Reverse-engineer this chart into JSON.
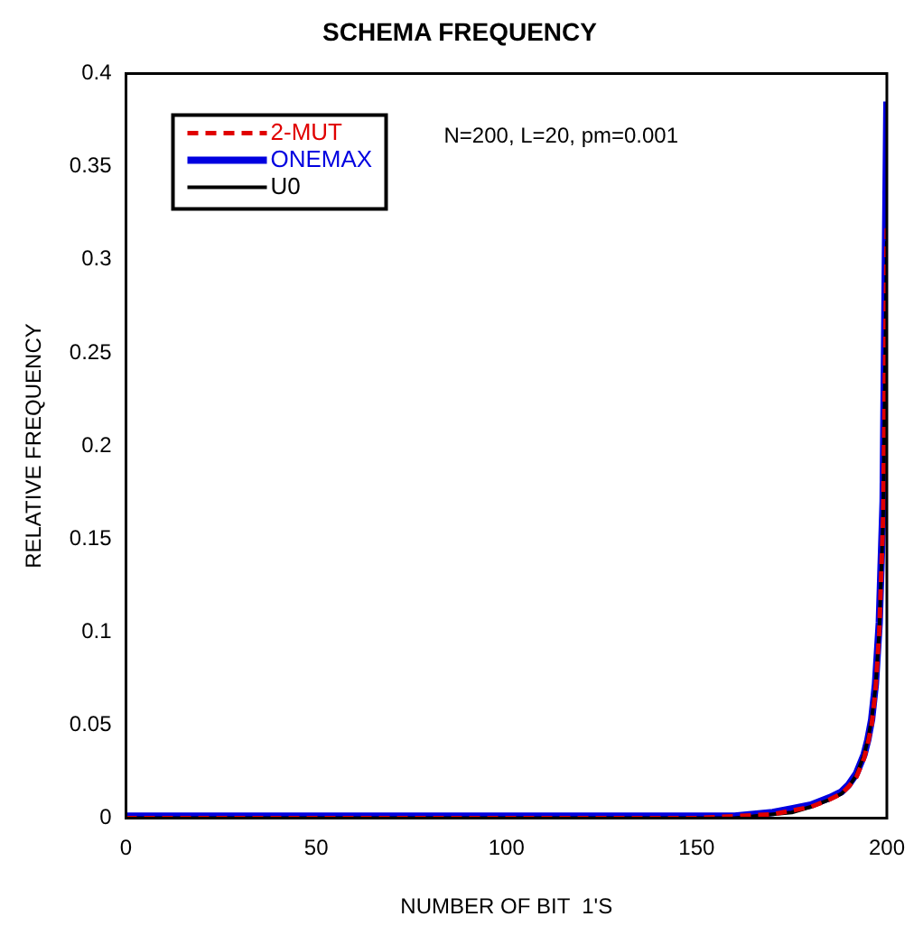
{
  "chart_data": {
    "type": "line",
    "title": "SCHEMA FREQUENCY",
    "xlabel": "NUMBER OF BIT  1'S",
    "ylabel": "RELATIVE FREQUENCY",
    "annotations": [
      "N=200, L=20, pm=0.001"
    ],
    "x": [
      0,
      50,
      100,
      150,
      160,
      170,
      175,
      180,
      185,
      188,
      190,
      192,
      194,
      195,
      196,
      197,
      198,
      199,
      200
    ],
    "series": [
      {
        "name": "2-MUT",
        "color": "#e00000",
        "line_style": "dashed",
        "values": [
          0,
          0,
          0,
          0,
          0.001,
          0.002,
          0.004,
          0.006,
          0.01,
          0.013,
          0.017,
          0.022,
          0.032,
          0.04,
          0.05,
          0.068,
          0.1,
          0.16,
          0.32
        ]
      },
      {
        "name": "ONEMAX",
        "color": "#0000e0",
        "line_style": "solid",
        "values": [
          0.001,
          0.001,
          0.001,
          0.001,
          0.001,
          0.003,
          0.005,
          0.007,
          0.011,
          0.014,
          0.018,
          0.024,
          0.034,
          0.042,
          0.053,
          0.072,
          0.105,
          0.17,
          0.385
        ]
      },
      {
        "name": "U0",
        "color": "#000000",
        "line_style": "solid",
        "values": [
          0,
          0,
          0,
          0,
          0,
          0.002,
          0.003,
          0.006,
          0.01,
          0.013,
          0.017,
          0.023,
          0.034,
          0.042,
          0.053,
          0.07,
          0.1,
          0.16,
          0.31
        ]
      }
    ],
    "xlim": [
      0,
      200
    ],
    "xticks": [
      0,
      50,
      100,
      150,
      200
    ],
    "ylim": [
      0,
      0.4
    ],
    "yticks": [
      0,
      0.05,
      0.1,
      0.15,
      0.2,
      0.25,
      0.3,
      0.35,
      0.4
    ],
    "grid": false,
    "legend": "top left",
    "marker": "none"
  }
}
